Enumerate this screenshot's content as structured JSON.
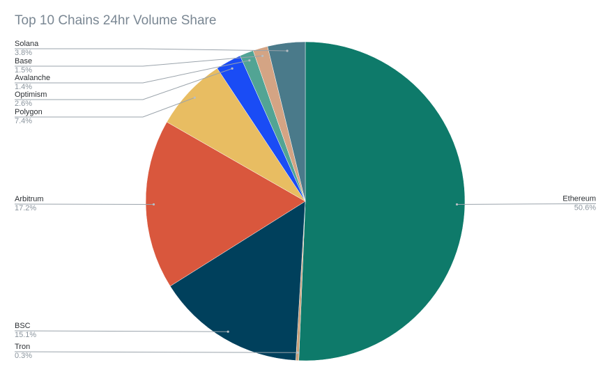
{
  "chart_data": {
    "type": "pie",
    "title": "Top 10 Chains 24hr Volume Share",
    "slices": [
      {
        "label": "Ethereum",
        "value": 50.6,
        "display": "50.6%",
        "color": "#0e7a6a",
        "side": "right"
      },
      {
        "label": "Tron",
        "value": 0.3,
        "display": "0.3%",
        "color": "#c9a07a",
        "side": "left"
      },
      {
        "label": "BSC",
        "value": 15.1,
        "display": "15.1%",
        "color": "#00405c",
        "side": "left"
      },
      {
        "label": "Arbitrum",
        "value": 17.2,
        "display": "17.2%",
        "color": "#d9573d",
        "side": "left"
      },
      {
        "label": "Polygon",
        "value": 7.4,
        "display": "7.4%",
        "color": "#e8bd62",
        "side": "left"
      },
      {
        "label": "Optimism",
        "value": 2.6,
        "display": "2.6%",
        "color": "#1a4cf5",
        "side": "left"
      },
      {
        "label": "Avalanche",
        "value": 1.4,
        "display": "1.4%",
        "color": "#52a494",
        "side": "left"
      },
      {
        "label": "Base",
        "value": 1.5,
        "display": "1.5%",
        "color": "#d4a484",
        "side": "left"
      },
      {
        "label": "Solana",
        "value": 3.8,
        "display": "3.8%",
        "color": "#4a7a8a",
        "side": "left"
      }
    ],
    "legend": "none",
    "direction": "clockwise",
    "start": "top"
  }
}
